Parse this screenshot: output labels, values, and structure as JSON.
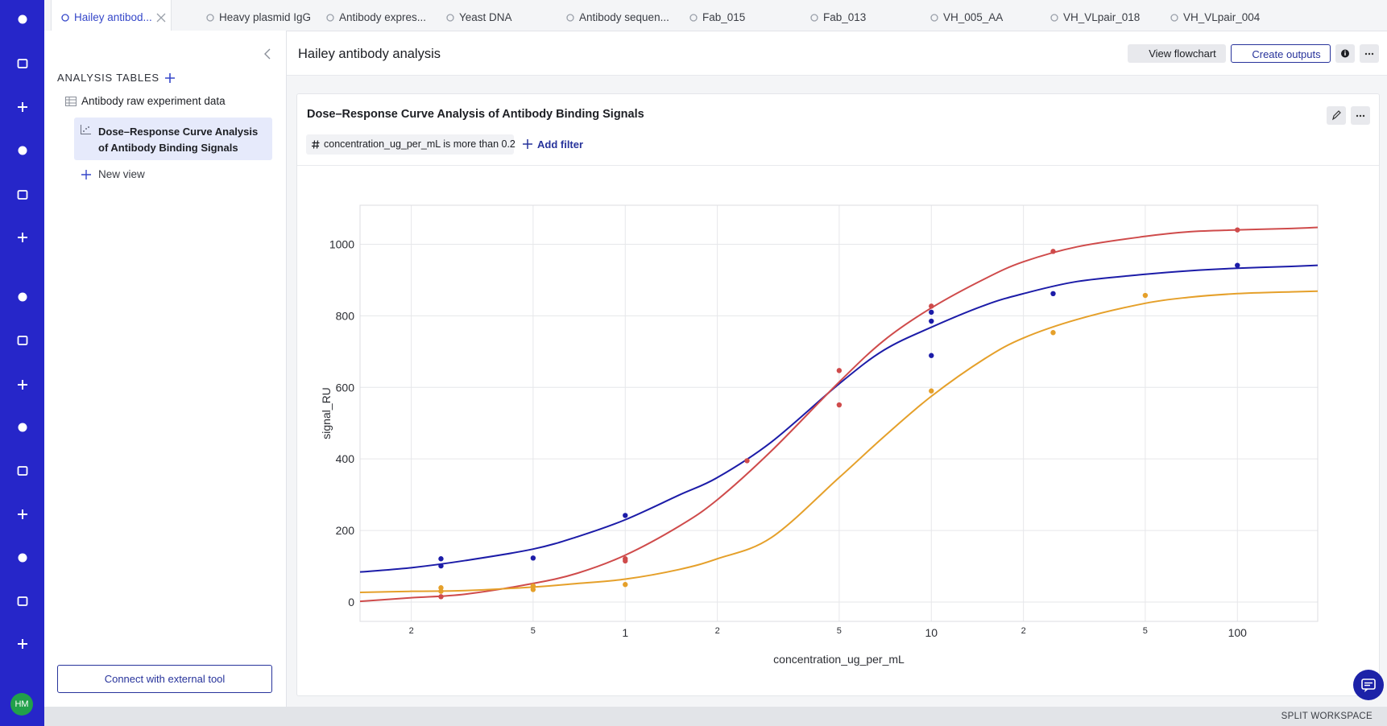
{
  "tabs": [
    "Hailey antibod...",
    "Heavy plasmid IgG",
    "Antibody expres...",
    "Yeast DNA",
    "Antibody sequen...",
    "Fab_015",
    "Fab_013",
    "VH_005_AA",
    "VH_VLpair_018",
    "VH_VLpair_004"
  ],
  "sidebar": {
    "avatar": "HM"
  },
  "left_panel": {
    "heading": "ANALYSIS TABLES",
    "items": [
      "Antibody raw experiment data",
      "Dose–Response Curve Analysis of Antibody Binding Signals"
    ],
    "new_view": "New view",
    "connect_button": "Connect with external tool"
  },
  "header": {
    "title": "Hailey antibody analysis",
    "buttons": [
      "View flowchart",
      "Create outputs"
    ]
  },
  "card": {
    "title": "Dose–Response Curve Analysis of Antibody Binding Signals",
    "filter": "concentration_ug_per_mL is more than 0.2",
    "add_filter": "Add filter"
  },
  "chart": {
    "type": "scatter",
    "xscale": "log",
    "xlabel": "concentration_ug_per_mL",
    "ylabel": "signal_RU",
    "xlim": [
      0.136,
      183
    ],
    "ylim": [
      -54,
      1109
    ],
    "xticks": [
      {
        "value": 0.2,
        "label": "2"
      },
      {
        "value": 0.5,
        "label": "5"
      },
      1,
      {
        "value": 2,
        "label": "2"
      },
      {
        "value": 5,
        "label": "5"
      },
      10,
      {
        "value": 20,
        "label": "2"
      },
      {
        "value": 50,
        "label": "5"
      },
      100
    ],
    "yticks": [
      0,
      200,
      400,
      600,
      800,
      1000
    ],
    "grid": true,
    "series": [
      {
        "color": "#1c1ca8",
        "x": [
          0.25,
          0.25,
          0.5,
          1,
          10,
          10,
          10,
          25,
          100
        ],
        "y": [
          121,
          101,
          123,
          242,
          810,
          785,
          689,
          862,
          941
        ]
      },
      {
        "color": "#cf4b4b",
        "x": [
          0.25,
          1,
          1,
          2.5,
          5,
          5,
          10,
          25,
          100
        ],
        "y": [
          15,
          121,
          115,
          395,
          647,
          551,
          827,
          980,
          1040
        ]
      },
      {
        "color": "#e5a02a",
        "x": [
          0.25,
          0.25,
          0.5,
          0.5,
          1,
          10,
          25,
          50
        ],
        "y": [
          40,
          30,
          45,
          35,
          49,
          590,
          753,
          857
        ]
      }
    ],
    "curve_x": [
      0.136,
      0.2,
      0.3,
      0.5,
      0.7,
      1,
      1.5,
      2,
      3,
      5,
      7,
      10,
      15,
      20,
      30,
      50,
      70,
      100,
      150,
      183
    ],
    "curves": [
      {
        "color": "#1c1ca8",
        "values": [
          84,
          96,
          116,
          148,
          183,
          230,
          299,
          348,
          447,
          610,
          704,
          768,
          830,
          862,
          896,
          916,
          926,
          933,
          938,
          941
        ]
      },
      {
        "color": "#cf4b4b",
        "values": [
          2,
          12,
          22,
          52,
          81,
          131,
          212,
          286,
          422,
          615,
          731,
          822,
          904,
          951,
          993,
          1022,
          1035,
          1040,
          1044,
          1047
        ]
      },
      {
        "color": "#e5a02a",
        "values": [
          27,
          30,
          32,
          42,
          52,
          64,
          91,
          121,
          180,
          348,
          462,
          575,
          681,
          738,
          790,
          835,
          852,
          862,
          867,
          869
        ]
      }
    ]
  },
  "footer": "SPLIT WORKSPACE"
}
